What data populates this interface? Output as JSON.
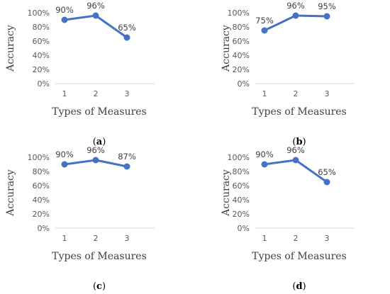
{
  "figure": {
    "accent_color": "#4472C4",
    "axis_color": "#d9d9d9"
  },
  "chart_data": [
    {
      "type": "line",
      "panel": "a",
      "panel_label": "a",
      "x": [
        1,
        2,
        3
      ],
      "x_tick_labels": [
        "1",
        "2",
        "3"
      ],
      "values": [
        90,
        96,
        65
      ],
      "data_labels": [
        "90%",
        "96%",
        "65%"
      ],
      "y_tick_labels": [
        "0%",
        "20%",
        "40%",
        "60%",
        "80%",
        "100%"
      ],
      "ylim": [
        0,
        100
      ],
      "xlabel": "Types of Measures",
      "ylabel": "Accuracy",
      "grid": false,
      "color": "#4472C4"
    },
    {
      "type": "line",
      "panel": "b",
      "panel_label": "b",
      "x": [
        1,
        2,
        3
      ],
      "x_tick_labels": [
        "1",
        "2",
        "3"
      ],
      "values": [
        75,
        96,
        95
      ],
      "data_labels": [
        "75%",
        "96%",
        "95%"
      ],
      "y_tick_labels": [
        "0%",
        "20%",
        "40%",
        "60%",
        "80%",
        "100%"
      ],
      "ylim": [
        0,
        100
      ],
      "xlabel": "Types of Measures",
      "ylabel": "Accuracy",
      "grid": false,
      "color": "#4472C4"
    },
    {
      "type": "line",
      "panel": "c",
      "panel_label": "c",
      "x": [
        1,
        2,
        3
      ],
      "x_tick_labels": [
        "1",
        "2",
        "3"
      ],
      "values": [
        90,
        96,
        87
      ],
      "data_labels": [
        "90%",
        "96%",
        "87%"
      ],
      "y_tick_labels": [
        "0%",
        "20%",
        "40%",
        "60%",
        "80%",
        "100%"
      ],
      "ylim": [
        0,
        100
      ],
      "xlabel": "Types of Measures",
      "ylabel": "Accuracy",
      "grid": false,
      "color": "#4472C4"
    },
    {
      "type": "line",
      "panel": "d",
      "panel_label": "d",
      "x": [
        1,
        2,
        3
      ],
      "x_tick_labels": [
        "1",
        "2",
        "3"
      ],
      "values": [
        90,
        96,
        65
      ],
      "data_labels": [
        "90%",
        "96%",
        "65%"
      ],
      "y_tick_labels": [
        "0%",
        "20%",
        "40%",
        "60%",
        "80%",
        "100%"
      ],
      "ylim": [
        0,
        100
      ],
      "xlabel": "Types of Measures",
      "ylabel": "Accuracy",
      "grid": false,
      "color": "#4472C4"
    }
  ]
}
